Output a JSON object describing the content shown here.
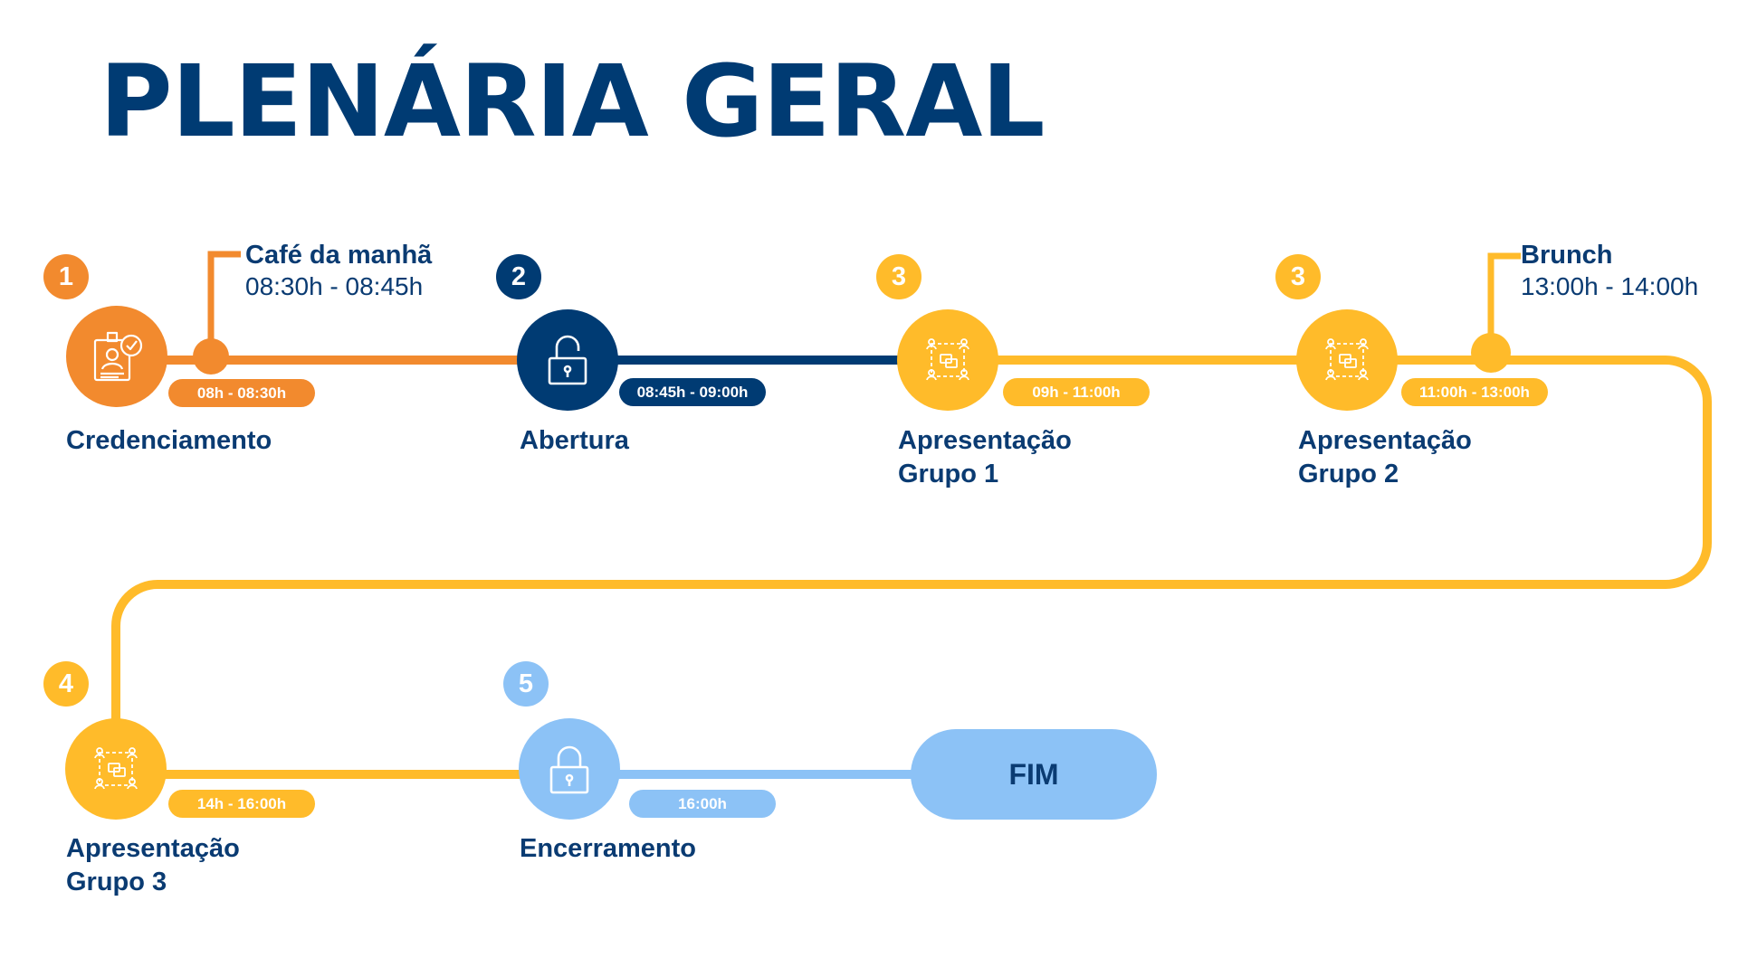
{
  "title": "PLENÁRIA GERAL",
  "colors": {
    "orange": "#f28a2e",
    "navy": "#003b73",
    "yellow": "#ffbb2a",
    "light_blue": "#8cc2f6",
    "text": "#0a3b72"
  },
  "steps": [
    {
      "number": "1",
      "label": "Credenciamento",
      "time": "08h - 08:30h",
      "icon": "id-card-icon",
      "color": "orange"
    },
    {
      "number": "2",
      "label": "Abertura",
      "time": "08:45h - 09:00h",
      "icon": "unlocked-padlock-icon",
      "color": "navy"
    },
    {
      "number": "3",
      "label_line1": "Apresentação",
      "label_line2": "Grupo 1",
      "time": "09h - 11:00h",
      "icon": "group-discussion-icon",
      "color": "yellow"
    },
    {
      "number": "3",
      "label_line1": "Apresentação",
      "label_line2": "Grupo 2",
      "time": "11:00h - 13:00h",
      "icon": "group-discussion-icon",
      "color": "yellow"
    },
    {
      "number": "4",
      "label_line1": "Apresentação",
      "label_line2": "Grupo 3",
      "time": "14h - 16:00h",
      "icon": "group-discussion-icon",
      "color": "yellow"
    },
    {
      "number": "5",
      "label": "Encerramento",
      "time": "16:00h",
      "icon": "locked-padlock-icon",
      "color": "light_blue"
    }
  ],
  "breaks": [
    {
      "title": "Café da manhã",
      "time": "08:30h - 08:45h"
    },
    {
      "title": "Brunch",
      "time": "13:00h - 14:00h"
    }
  ],
  "end_label": "FIM"
}
